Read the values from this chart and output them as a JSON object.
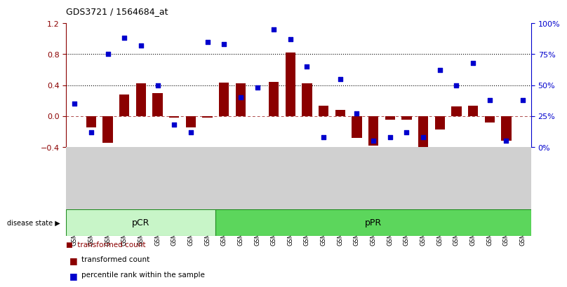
{
  "title": "GDS3721 / 1564684_at",
  "samples": [
    "GSM559062",
    "GSM559063",
    "GSM559064",
    "GSM559065",
    "GSM559066",
    "GSM559067",
    "GSM559068",
    "GSM559069",
    "GSM559042",
    "GSM559043",
    "GSM559044",
    "GSM559045",
    "GSM559046",
    "GSM559047",
    "GSM559048",
    "GSM559049",
    "GSM559050",
    "GSM559051",
    "GSM559052",
    "GSM559053",
    "GSM559054",
    "GSM559055",
    "GSM559056",
    "GSM559057",
    "GSM559058",
    "GSM559059",
    "GSM559060",
    "GSM559061"
  ],
  "transformed_count": [
    0.0,
    -0.15,
    -0.35,
    0.28,
    0.42,
    0.3,
    -0.02,
    -0.15,
    -0.02,
    0.43,
    0.42,
    0.0,
    0.44,
    0.82,
    0.42,
    0.13,
    0.08,
    -0.28,
    -0.38,
    -0.05,
    -0.05,
    -0.42,
    -0.17,
    0.12,
    0.13,
    -0.08,
    -0.32,
    0.0
  ],
  "percentile_rank": [
    35,
    12,
    75,
    88,
    82,
    50,
    18,
    12,
    85,
    83,
    40,
    48,
    95,
    87,
    65,
    8,
    55,
    27,
    5,
    8,
    12,
    8,
    62,
    50,
    68,
    38,
    5,
    38
  ],
  "pcr_count": 9,
  "bar_color": "#8B0000",
  "dot_color": "#0000CD",
  "pcr_color": "#c8f5c8",
  "ppr_color": "#5cd65c",
  "ylim_left": [
    -0.4,
    1.2
  ],
  "ylim_right": [
    0,
    100
  ],
  "yticks_left": [
    -0.4,
    0.0,
    0.4,
    0.8,
    1.2
  ],
  "yticks_right": [
    0,
    25,
    50,
    75,
    100
  ],
  "hline_values": [
    0.4,
    0.8
  ],
  "background_color": "#ffffff",
  "tick_bg_color": "#d0d0d0"
}
